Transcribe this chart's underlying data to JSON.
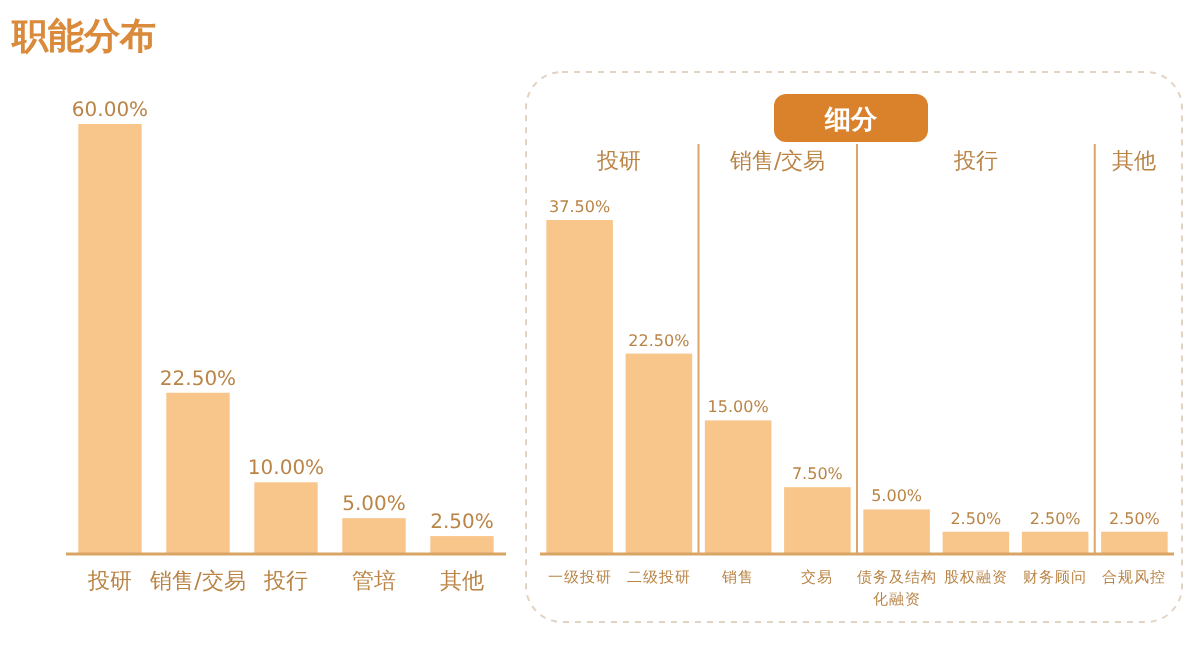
{
  "chart_data": [
    {
      "type": "bar",
      "title": "职能分布",
      "categories": [
        "投研",
        "销售/交易",
        "投行",
        "管培",
        "其他"
      ],
      "values": [
        60,
        22.5,
        10,
        5,
        2.5
      ],
      "value_labels": [
        "60.00%",
        "22.50%",
        "10.00%",
        "5.00%",
        "2.50%"
      ],
      "color": "#f8c58a"
    },
    {
      "type": "bar",
      "title": "细分",
      "categories": [
        "一级投研",
        "二级投研",
        "销售",
        "交易",
        "债务及结构化融资",
        "股权融资",
        "财务顾问",
        "合规风控"
      ],
      "values": [
        37.5,
        22.5,
        15,
        7.5,
        5,
        2.5,
        2.5,
        2.5
      ],
      "value_labels": [
        "37.50%",
        "22.50%",
        "15.00%",
        "7.50%",
        "5.00%",
        "2.50%",
        "2.50%",
        "2.50%"
      ],
      "color": "#f8c58a",
      "annotations": [
        "投研",
        "销售/交易",
        "投行",
        "其他"
      ]
    }
  ]
}
